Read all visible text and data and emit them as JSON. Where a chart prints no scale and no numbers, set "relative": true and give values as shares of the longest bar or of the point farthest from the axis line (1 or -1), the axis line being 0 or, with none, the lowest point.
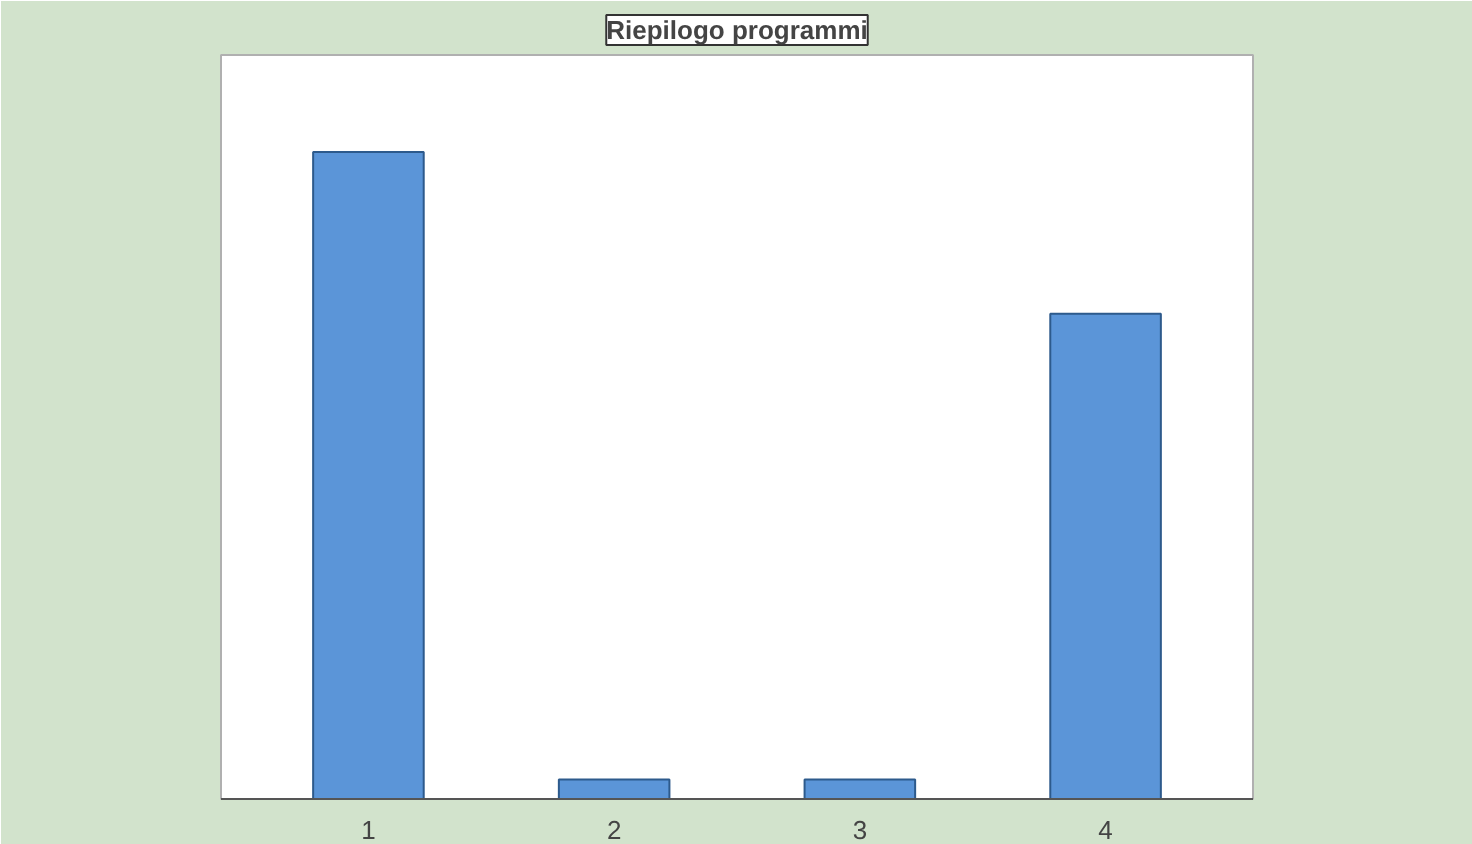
{
  "chart_data": {
    "type": "bar",
    "title": "Riepilogo programmi",
    "relative": true,
    "categories": [
      "1",
      "2",
      "3",
      "4"
    ],
    "values": [
      1,
      0.03,
      0.03,
      0.75
    ],
    "color": "#5b95d8"
  }
}
